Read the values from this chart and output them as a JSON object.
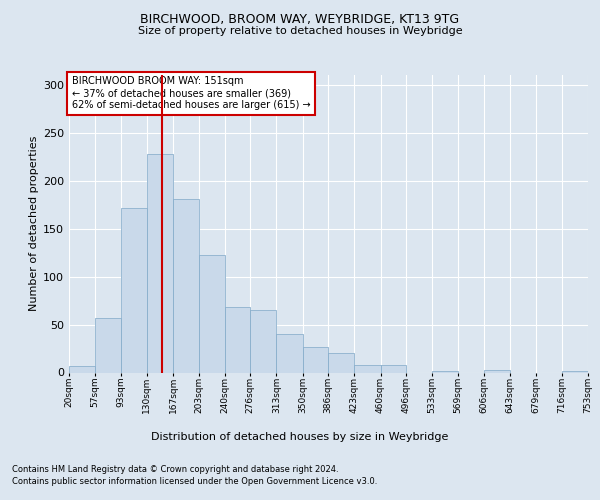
{
  "title1": "BIRCHWOOD, BROOM WAY, WEYBRIDGE, KT13 9TG",
  "title2": "Size of property relative to detached houses in Weybridge",
  "xlabel": "Distribution of detached houses by size in Weybridge",
  "ylabel": "Number of detached properties",
  "footer1": "Contains HM Land Registry data © Crown copyright and database right 2024.",
  "footer2": "Contains public sector information licensed under the Open Government Licence v3.0.",
  "annotation_line1": "BIRCHWOOD BROOM WAY: 151sqm",
  "annotation_line2": "← 37% of detached houses are smaller (369)",
  "annotation_line3": "62% of semi-detached houses are larger (615) →",
  "bar_color": "#c9d9ea",
  "bar_edge_color": "#7fa8c8",
  "vline_color": "#cc0000",
  "vline_x": 151,
  "bin_edges": [
    20,
    57,
    93,
    130,
    167,
    203,
    240,
    276,
    313,
    350,
    386,
    423,
    460,
    496,
    533,
    569,
    606,
    643,
    679,
    716,
    753
  ],
  "bar_heights": [
    7,
    57,
    171,
    228,
    181,
    122,
    68,
    65,
    40,
    27,
    20,
    8,
    8,
    0,
    2,
    0,
    3,
    0,
    0,
    2
  ],
  "ylim": [
    0,
    310
  ],
  "yticks": [
    0,
    50,
    100,
    150,
    200,
    250,
    300
  ],
  "bg_color": "#dce6f0",
  "plot_bg_color": "#dce6f0",
  "grid_color": "#ffffff",
  "annotation_box_color": "#ffffff",
  "annotation_border_color": "#cc0000"
}
